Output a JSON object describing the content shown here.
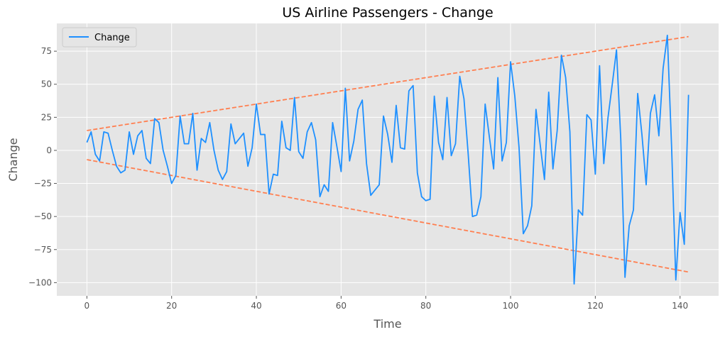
{
  "chart_data": {
    "type": "line",
    "title": "US Airline Passengers - Change",
    "xlabel": "Time",
    "ylabel": "Change",
    "xlim": [
      -7.1,
      149.1
    ],
    "ylim": [
      -110,
      96
    ],
    "xticks": [
      0,
      20,
      40,
      60,
      80,
      100,
      120,
      140
    ],
    "yticks": [
      -100,
      -75,
      -50,
      -25,
      0,
      25,
      50,
      75
    ],
    "grid": true,
    "legend_position": "top-left",
    "colors": {
      "background": "#e5e5e5",
      "grid": "#ffffff",
      "series": "#1e90ff",
      "trend": "#ff7f50"
    },
    "series": [
      {
        "name": "Change",
        "x_start": 0,
        "values": [
          6,
          14,
          -3,
          -8,
          14,
          13,
          0,
          -12,
          -17,
          -15,
          14,
          -3,
          11,
          15,
          -6,
          -10,
          24,
          21,
          0,
          -12,
          -25,
          -19,
          26,
          5,
          5,
          28,
          -15,
          9,
          6,
          21,
          0,
          -15,
          -22,
          -16,
          20,
          5,
          9,
          13,
          -12,
          2,
          35,
          12,
          12,
          -33,
          -18,
          -19,
          22,
          2,
          0,
          40,
          -1,
          -6,
          14,
          21,
          8,
          -35,
          -26,
          -31,
          21,
          3,
          -16,
          47,
          -8,
          7,
          31,
          38,
          -10,
          -34,
          -30,
          -26,
          26,
          12,
          -9,
          34,
          2,
          1,
          45,
          49,
          -17,
          -35,
          -38,
          -37,
          41,
          6,
          -7,
          40,
          -4,
          5,
          56,
          39,
          -3,
          -50,
          -49,
          -35,
          35,
          10,
          -14,
          55,
          -8,
          6,
          67,
          41,
          2,
          -63,
          -57,
          -42,
          31,
          4,
          -22,
          44,
          -14,
          15,
          72,
          55,
          14,
          -101,
          -45,
          -49,
          27,
          23,
          -18,
          64,
          -10,
          25,
          50,
          76,
          9,
          -96,
          -57,
          -45,
          43,
          12,
          -26,
          28,
          42,
          11,
          62,
          87,
          3,
          -98,
          -47,
          -71,
          42
        ]
      }
    ],
    "trend_lines": [
      {
        "name": "upper",
        "x": [
          0,
          142
        ],
        "y": [
          15,
          86
        ]
      },
      {
        "name": "lower",
        "x": [
          0,
          142
        ],
        "y": [
          -7,
          -92
        ]
      }
    ]
  }
}
